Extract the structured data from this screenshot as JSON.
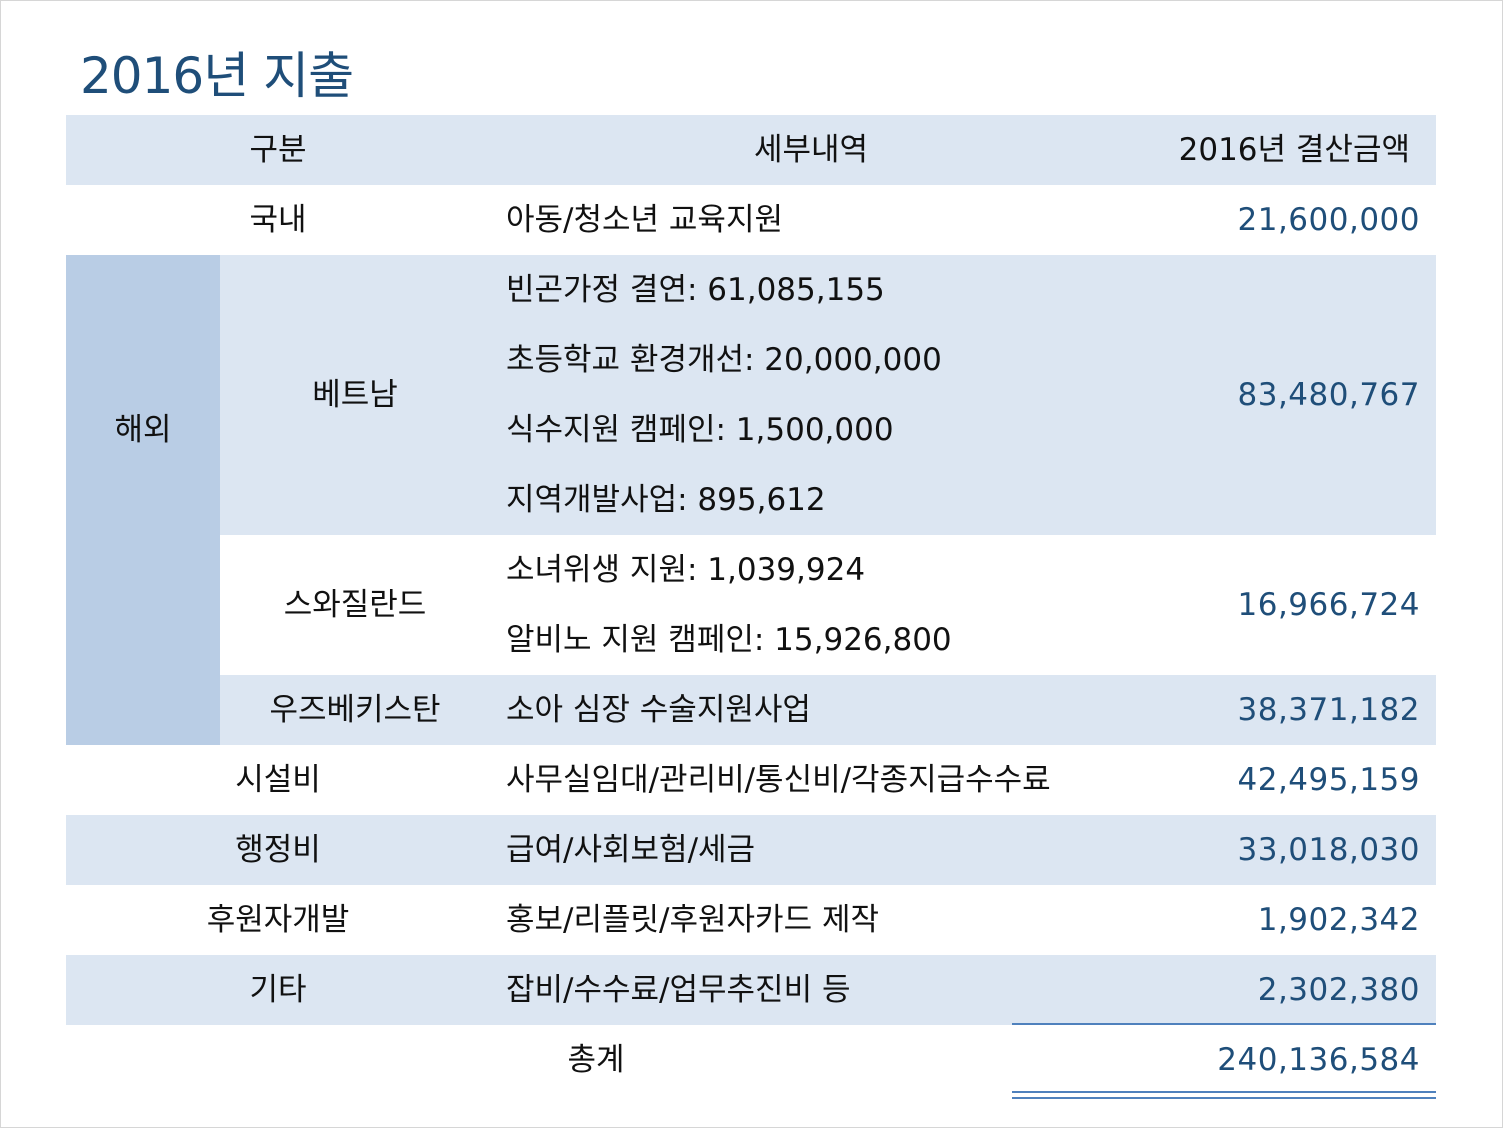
{
  "title": "2016년 지출",
  "header": {
    "category": "구분",
    "detail": "세부내역",
    "amount": "2016년 결산금액"
  },
  "rows": {
    "domestic": {
      "category": "국내",
      "detail": "아동/청소년 교육지원",
      "amount": "21,600,000"
    },
    "overseas": {
      "category": "해외",
      "vietnam": {
        "country": "베트남",
        "details": [
          "빈곤가정 결연: 61,085,155",
          "초등학교 환경개선: 20,000,000",
          "식수지원 캠페인: 1,500,000",
          "지역개발사업: 895,612"
        ],
        "amount": "83,480,767"
      },
      "swaziland": {
        "country": "스와질란드",
        "details": [
          "소녀위생 지원: 1,039,924",
          "알비노 지원 캠페인: 15,926,800"
        ],
        "amount": "16,966,724"
      },
      "uzbekistan": {
        "country": "우즈베키스탄",
        "detail": "소아 심장 수술지원사업",
        "amount": "38,371,182"
      }
    },
    "facilities": {
      "category": "시설비",
      "detail": "사무실임대/관리비/통신비/각종지급수수료",
      "amount": "42,495,159"
    },
    "administration": {
      "category": "행정비",
      "detail": "급여/사회보험/세금",
      "amount": "33,018,030"
    },
    "donor_development": {
      "category": "후원자개발",
      "detail": "홍보/리플릿/후원자카드 제작",
      "amount": "1,902,342"
    },
    "other": {
      "category": "기타",
      "detail": "잡비/수수료/업무추진비 등",
      "amount": "2,302,380"
    }
  },
  "total": {
    "label": "총계",
    "amount": "240,136,584"
  },
  "colors": {
    "title": "#1f4e79",
    "band_light": "#dce6f2",
    "overseas_cell": "#b9cde5",
    "amount_text": "#1f4e79",
    "rule": "#4f81bd"
  }
}
